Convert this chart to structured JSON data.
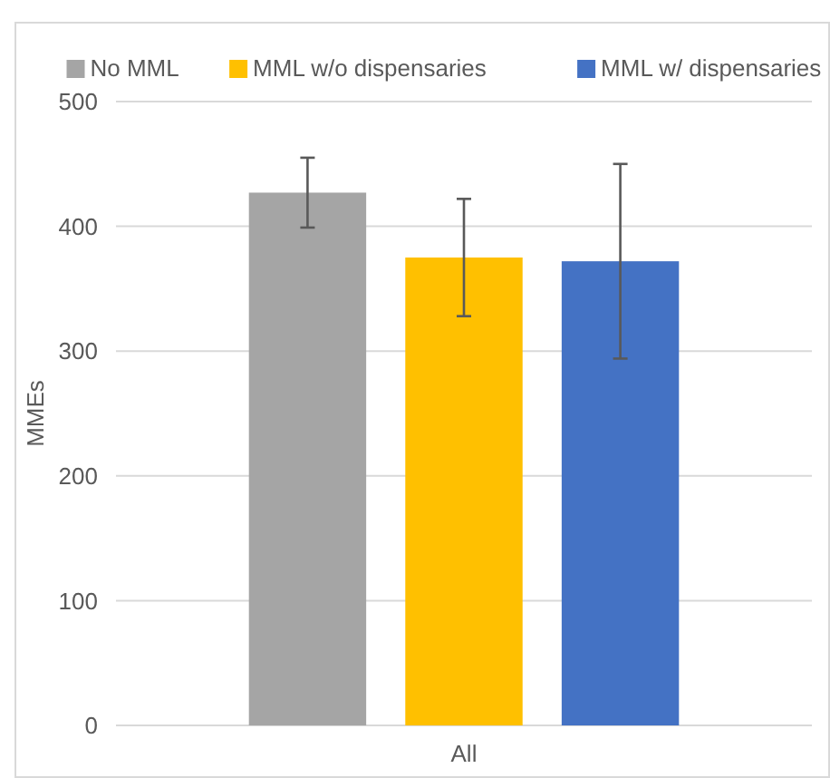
{
  "chart_data": {
    "type": "bar",
    "categories": [
      "All"
    ],
    "ylabel": "MMEs",
    "ylim": [
      0,
      500
    ],
    "yticks": [
      0,
      100,
      200,
      300,
      400,
      500
    ],
    "grid": "y",
    "legend": "top",
    "series": [
      {
        "name": "No MML",
        "color": "#a5a5a5",
        "values": [
          427
        ],
        "errors": [
          28
        ]
      },
      {
        "name": "MML w/o dispensaries",
        "color": "#ffc000",
        "values": [
          375
        ],
        "errors": [
          47
        ]
      },
      {
        "name": "MML w/ dispensaries",
        "color": "#4472c4",
        "values": [
          372
        ],
        "errors": [
          78
        ]
      }
    ]
  }
}
